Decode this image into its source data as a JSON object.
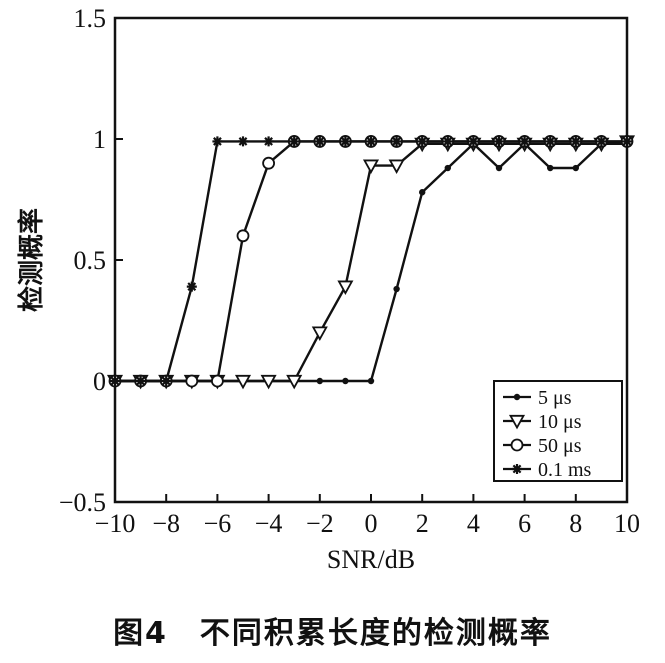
{
  "caption": "图4　不同积累长度的检测概率",
  "chart_data": {
    "type": "line",
    "title": "",
    "xlabel": "SNR/dB",
    "ylabel": "检测概率",
    "xlim": [
      -10,
      10
    ],
    "ylim": [
      -0.5,
      1.5
    ],
    "x_ticks": [
      -10,
      -8,
      -6,
      -4,
      -2,
      0,
      2,
      4,
      6,
      8,
      10
    ],
    "x_tick_labels": [
      "−10",
      "−8",
      "−6",
      "−4",
      "−2",
      "0",
      "2",
      "4",
      "6",
      "8",
      "10"
    ],
    "y_ticks": [
      -0.5,
      0,
      0.5,
      1,
      1.5
    ],
    "y_tick_labels": [
      "−0.5",
      "0",
      "0.5",
      "1",
      "1.5"
    ],
    "grid": false,
    "legend_position": "bottom-right",
    "x": [
      -10,
      -9,
      -8,
      -7,
      -6,
      -5,
      -4,
      -3,
      -2,
      -1,
      0,
      1,
      2,
      3,
      4,
      5,
      6,
      7,
      8,
      9,
      10
    ],
    "series": [
      {
        "name": "5 μs",
        "marker": "dot",
        "values": [
          0,
          0,
          0,
          0,
          0,
          0,
          0,
          0,
          0,
          0,
          0,
          0.38,
          0.78,
          0.88,
          0.98,
          0.88,
          0.98,
          0.88,
          0.88,
          0.98,
          0.98
        ]
      },
      {
        "name": "10 μs",
        "marker": "triangle-down",
        "values": [
          0,
          0,
          0,
          0,
          0,
          0,
          0,
          0,
          0.2,
          0.39,
          0.89,
          0.89,
          0.98,
          0.98,
          0.98,
          0.98,
          0.98,
          0.98,
          0.98,
          0.98,
          0.99
        ]
      },
      {
        "name": "50 μs",
        "marker": "circle",
        "values": [
          0,
          0,
          0,
          0,
          0,
          0.6,
          0.9,
          0.99,
          0.99,
          0.99,
          0.99,
          0.99,
          0.99,
          0.99,
          0.99,
          0.99,
          0.99,
          0.99,
          0.99,
          0.99,
          0.99
        ]
      },
      {
        "name": "0.1 ms",
        "marker": "star",
        "values": [
          0,
          0,
          0,
          0.39,
          0.99,
          0.99,
          0.99,
          0.99,
          0.99,
          0.99,
          0.99,
          0.99,
          0.99,
          0.99,
          0.99,
          0.99,
          0.99,
          0.99,
          0.99,
          0.99,
          0.99
        ]
      }
    ]
  }
}
